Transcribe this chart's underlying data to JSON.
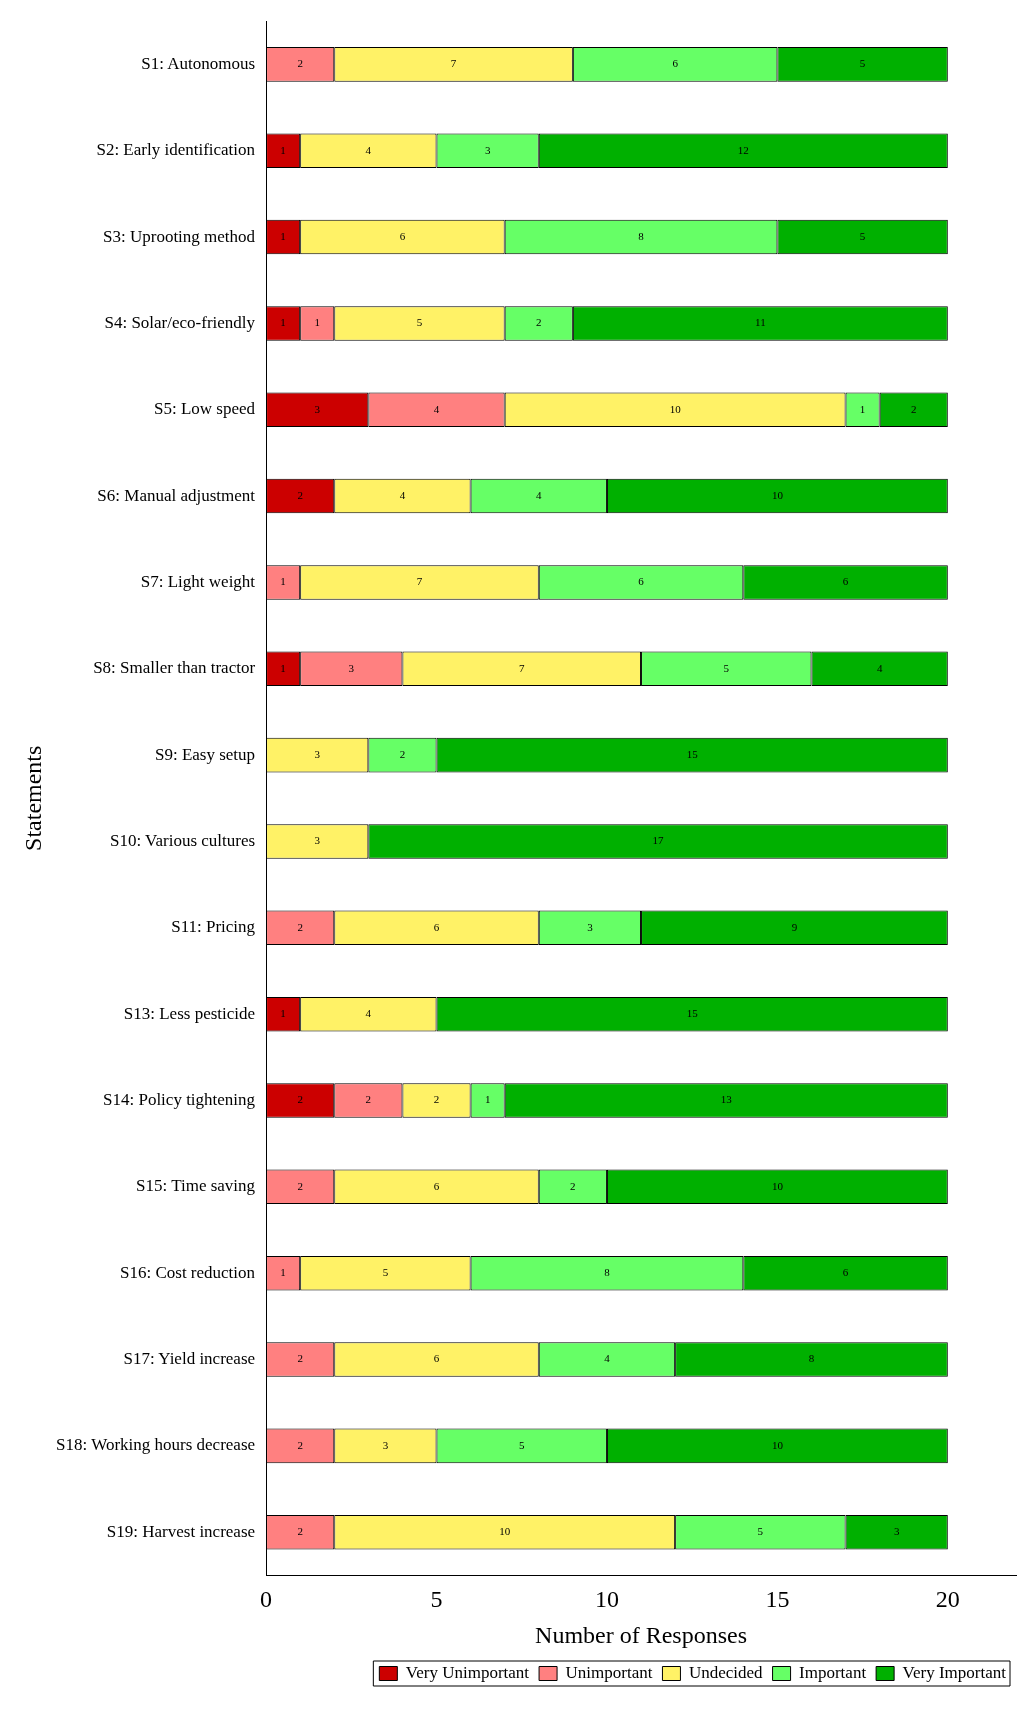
{
  "chart_data": {
    "type": "bar",
    "orientation": "horizontal",
    "stacked": true,
    "xlabel": "Number of Responses",
    "ylabel": "Statements",
    "categories": [
      "S1: Autonomous",
      "S2: Early identification",
      "S3: Uprooting method",
      "S4: Solar/eco-friendly",
      "S5: Low speed",
      "S6: Manual adjustment",
      "S7: Light weight",
      "S8: Smaller than tractor",
      "S9: Easy setup",
      "S10: Various cultures",
      "S11: Pricing",
      "S13: Less pesticide",
      "S14: Policy tightening",
      "S15: Time saving",
      "S16: Cost reduction",
      "S17: Yield increase",
      "S18: Working hours decrease",
      "S19: Harvest increase"
    ],
    "series": [
      {
        "name": "Very Unimportant",
        "color": "#cc0000",
        "values": [
          null,
          1,
          1,
          1,
          3,
          2,
          null,
          1,
          null,
          null,
          null,
          1,
          2,
          null,
          null,
          null,
          null,
          null
        ]
      },
      {
        "name": "Unimportant",
        "color": "#ff8080",
        "values": [
          2,
          null,
          null,
          1,
          4,
          null,
          1,
          3,
          null,
          null,
          2,
          null,
          2,
          2,
          1,
          2,
          2,
          2
        ]
      },
      {
        "name": "Undecided",
        "color": "#fff266",
        "values": [
          7,
          4,
          6,
          5,
          10,
          4,
          7,
          7,
          3,
          3,
          6,
          4,
          2,
          6,
          5,
          6,
          3,
          10
        ]
      },
      {
        "name": "Important",
        "color": "#66ff66",
        "values": [
          6,
          3,
          8,
          2,
          1,
          4,
          6,
          5,
          2,
          null,
          3,
          null,
          1,
          2,
          8,
          4,
          5,
          5
        ]
      },
      {
        "name": "Very Important",
        "color": "#00b000",
        "values": [
          5,
          12,
          5,
          11,
          2,
          10,
          6,
          4,
          15,
          17,
          9,
          15,
          13,
          10,
          6,
          8,
          10,
          3
        ]
      }
    ],
    "xlim": [
      0,
      22
    ],
    "xticks": [
      0,
      5,
      10,
      15,
      20
    ],
    "grid": false,
    "legend": "bottom right",
    "data_labels": true
  }
}
